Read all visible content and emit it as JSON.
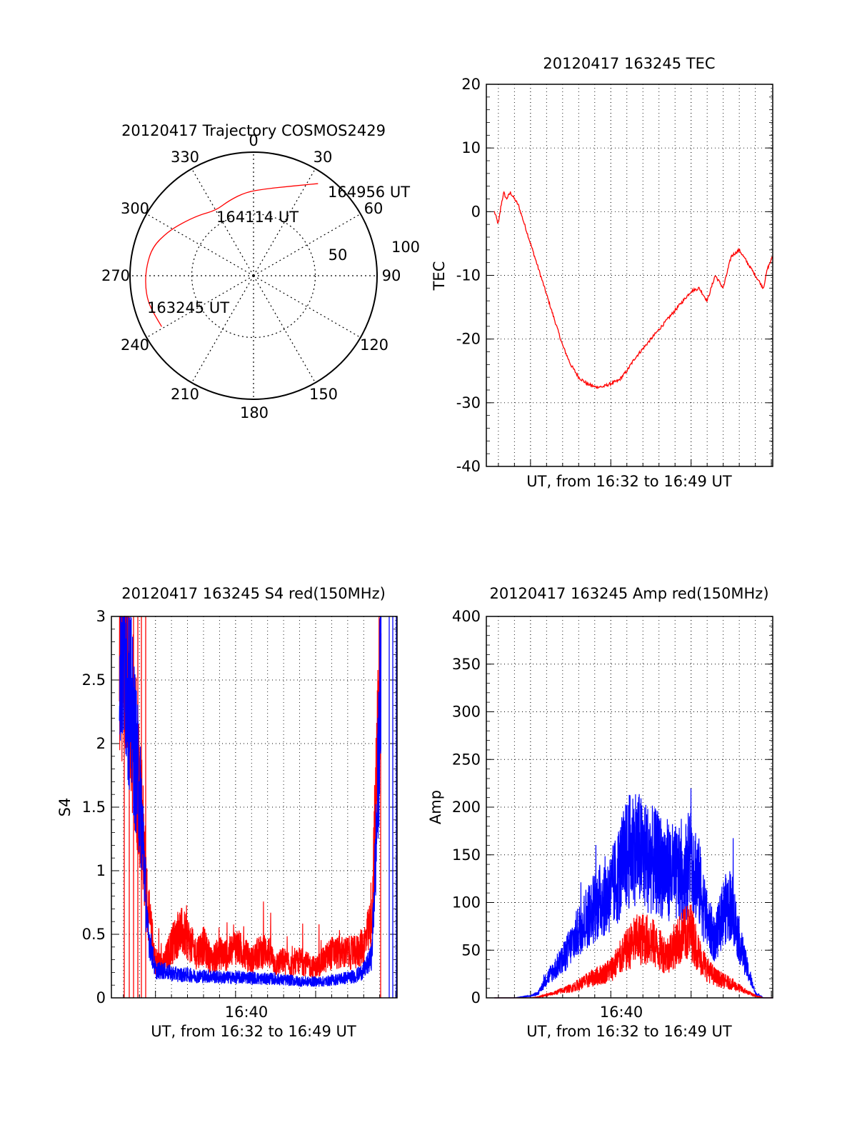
{
  "colors": {
    "red": "#ff0000",
    "blue": "#0000ff",
    "axis": "#000000",
    "grid": "#000000"
  },
  "chart_data": [
    {
      "id": "trajectory",
      "type": "polar",
      "title": "20120417 Trajectory COSMOS2429",
      "angle_labels": [
        "0",
        "30",
        "60",
        "90",
        "120",
        "150",
        "180",
        "210",
        "240",
        "270",
        "300",
        "330"
      ],
      "radial_labels": [
        "50",
        "100"
      ],
      "radial_range": [
        0,
        100
      ],
      "grid": true,
      "series": [
        {
          "color": "#ff0000",
          "points": [
            {
              "az": 241,
              "r": 85
            },
            {
              "az": 248,
              "r": 86
            },
            {
              "az": 256,
              "r": 88
            },
            {
              "az": 265,
              "r": 88
            },
            {
              "az": 275,
              "r": 87
            },
            {
              "az": 286,
              "r": 85
            },
            {
              "az": 297,
              "r": 78
            },
            {
              "az": 306,
              "r": 72
            },
            {
              "az": 318,
              "r": 66
            },
            {
              "az": 330,
              "r": 61
            },
            {
              "az": 342,
              "r": 64
            },
            {
              "az": 355,
              "r": 68
            },
            {
              "az": 8,
              "r": 71
            },
            {
              "az": 19,
              "r": 76
            },
            {
              "az": 28,
              "r": 83
            },
            {
              "az": 35,
              "r": 91
            }
          ]
        }
      ],
      "annotations": [
        {
          "text": "164956 UT"
        },
        {
          "text": "164114 UT"
        },
        {
          "text": "163245 UT"
        }
      ]
    },
    {
      "id": "tec",
      "type": "line",
      "title": "20120417 163245 TEC",
      "xlabel": "UT, from 16:32 to 16:49 UT",
      "ylabel": "TEC",
      "ylim": [
        -40,
        20
      ],
      "xlim": [
        "16:32:15",
        "16:50:05"
      ],
      "x_ticks": [],
      "y_ticks": [
        "-40",
        "-30",
        "-20",
        "-10",
        "0",
        "10",
        "20"
      ],
      "grid": true,
      "series": [
        {
          "color": "#ff0000",
          "x": [
            "16:32:45",
            "16:33:00",
            "16:33:10",
            "16:33:20",
            "16:33:30",
            "16:33:45",
            "16:34:00",
            "16:34:15",
            "16:34:30",
            "16:35:00",
            "16:35:30",
            "16:36:00",
            "16:36:30",
            "16:37:00",
            "16:37:30",
            "16:38:00",
            "16:38:30",
            "16:39:00",
            "16:39:30",
            "16:40:00",
            "16:40:30",
            "16:41:00",
            "16:41:30",
            "16:42:00",
            "16:42:30",
            "16:43:00",
            "16:43:30",
            "16:44:00",
            "16:44:30",
            "16:45:00",
            "16:45:30",
            "16:46:00",
            "16:46:30",
            "16:47:00",
            "16:47:30",
            "16:48:00",
            "16:48:30",
            "16:48:45",
            "16:49:00",
            "16:49:15",
            "16:49:30",
            "16:49:45",
            "16:50:05"
          ],
          "values": [
            0,
            -2,
            1,
            3,
            2,
            3,
            2,
            1,
            -1,
            -5,
            -9,
            -13,
            -17,
            -21,
            -24,
            -26,
            -27,
            -27.5,
            -27.5,
            -27,
            -26.5,
            -25,
            -23,
            -21.5,
            -20,
            -18.5,
            -17,
            -15.5,
            -14,
            -12.5,
            -12,
            -14,
            -10,
            -12,
            -7,
            -6,
            -8,
            -9,
            -10,
            -11,
            -12,
            -9,
            -7
          ]
        }
      ]
    },
    {
      "id": "s4",
      "type": "line",
      "title": "20120417 163245 S4 red(150MHz)",
      "xlabel": "UT, from 16:32 to 16:49 UT",
      "ylabel": "S4",
      "ylim": [
        0,
        3
      ],
      "xlim": [
        "16:32:15",
        "16:50:05"
      ],
      "x_ticks": [
        "16:40"
      ],
      "y_ticks": [
        "0",
        "0.5",
        "1",
        "1.5",
        "2",
        "2.5",
        "3"
      ],
      "grid": true,
      "series": [
        {
          "color": "#ff0000",
          "x": [
            "16:32:45",
            "16:33:10",
            "16:33:30",
            "16:33:50",
            "16:34:10",
            "16:34:30",
            "16:35:00",
            "16:35:30",
            "16:36:00",
            "16:36:30",
            "16:37:00",
            "16:37:30",
            "16:38:00",
            "16:38:30",
            "16:39:00",
            "16:39:30",
            "16:40:00",
            "16:40:30",
            "16:41:00",
            "16:41:30",
            "16:42:00",
            "16:42:30",
            "16:43:00",
            "16:43:30",
            "16:44:00",
            "16:44:30",
            "16:45:00",
            "16:45:30",
            "16:46:00",
            "16:46:30",
            "16:47:00",
            "16:47:30",
            "16:48:00",
            "16:48:30",
            "16:48:50",
            "16:49:05"
          ],
          "values": [
            2.6,
            2.3,
            2.0,
            1.6,
            1.2,
            0.6,
            0.25,
            0.22,
            0.35,
            0.45,
            0.4,
            0.3,
            0.35,
            0.25,
            0.3,
            0.28,
            0.35,
            0.3,
            0.25,
            0.3,
            0.32,
            0.22,
            0.25,
            0.2,
            0.25,
            0.22,
            0.2,
            0.25,
            0.3,
            0.3,
            0.3,
            0.3,
            0.35,
            0.5,
            1.5,
            2.7
          ]
        },
        {
          "color": "#0000ff",
          "x": [
            "16:32:45",
            "16:33:10",
            "16:33:30",
            "16:33:50",
            "16:34:10",
            "16:34:30",
            "16:35:00",
            "16:35:30",
            "16:36:00",
            "16:36:30",
            "16:37:00",
            "16:37:30",
            "16:38:00",
            "16:38:30",
            "16:39:00",
            "16:39:30",
            "16:40:00",
            "16:40:30",
            "16:41:00",
            "16:41:30",
            "16:42:00",
            "16:42:30",
            "16:43:00",
            "16:43:30",
            "16:44:00",
            "16:44:30",
            "16:45:00",
            "16:45:30",
            "16:46:00",
            "16:46:30",
            "16:47:00",
            "16:47:30",
            "16:48:00",
            "16:48:30",
            "16:48:50",
            "16:49:05"
          ],
          "values": [
            2.7,
            2.5,
            2.1,
            1.7,
            1.3,
            0.5,
            0.2,
            0.2,
            0.18,
            0.17,
            0.17,
            0.16,
            0.16,
            0.16,
            0.15,
            0.15,
            0.15,
            0.15,
            0.15,
            0.14,
            0.14,
            0.14,
            0.13,
            0.13,
            0.12,
            0.12,
            0.12,
            0.12,
            0.13,
            0.14,
            0.15,
            0.16,
            0.2,
            0.3,
            1.3,
            2.5
          ]
        }
      ]
    },
    {
      "id": "amp",
      "type": "line",
      "title": "20120417 163245 Amp red(150MHz)",
      "xlabel": "UT, from 16:32 to 16:49 UT",
      "ylabel": "Amp",
      "ylim": [
        0,
        400
      ],
      "xlim": [
        "16:32:15",
        "16:50:05"
      ],
      "x_ticks": [
        "16:40"
      ],
      "y_ticks": [
        "0",
        "50",
        "100",
        "150",
        "200",
        "250",
        "300",
        "350",
        "400"
      ],
      "grid": true,
      "series": [
        {
          "color": "#0000ff",
          "x": [
            "16:32:45",
            "16:34:00",
            "16:35:00",
            "16:35:30",
            "16:36:00",
            "16:36:30",
            "16:37:00",
            "16:37:30",
            "16:38:00",
            "16:38:30",
            "16:39:00",
            "16:39:30",
            "16:40:00",
            "16:40:30",
            "16:41:00",
            "16:41:30",
            "16:42:00",
            "16:42:30",
            "16:43:00",
            "16:43:30",
            "16:44:00",
            "16:44:30",
            "16:45:00",
            "16:45:30",
            "16:46:00",
            "16:46:30",
            "16:47:00",
            "16:47:30",
            "16:48:00",
            "16:48:30",
            "16:49:00",
            "16:49:30",
            "16:50:05"
          ],
          "values": [
            0,
            0,
            2,
            5,
            20,
            30,
            40,
            55,
            70,
            85,
            95,
            105,
            110,
            130,
            150,
            160,
            150,
            145,
            140,
            135,
            130,
            125,
            150,
            120,
            80,
            60,
            90,
            100,
            60,
            30,
            5,
            0,
            0
          ]
        },
        {
          "color": "#ff0000",
          "x": [
            "16:32:45",
            "16:34:00",
            "16:35:00",
            "16:35:30",
            "16:36:00",
            "16:36:30",
            "16:37:00",
            "16:37:30",
            "16:38:00",
            "16:38:30",
            "16:39:00",
            "16:39:30",
            "16:40:00",
            "16:40:30",
            "16:41:00",
            "16:41:30",
            "16:42:00",
            "16:42:30",
            "16:43:00",
            "16:43:30",
            "16:44:00",
            "16:44:30",
            "16:45:00",
            "16:45:30",
            "16:46:00",
            "16:46:30",
            "16:47:00",
            "16:47:30",
            "16:48:00",
            "16:48:30",
            "16:49:00",
            "16:49:30",
            "16:50:05"
          ],
          "values": [
            0,
            0,
            0,
            1,
            3,
            5,
            8,
            10,
            14,
            18,
            22,
            25,
            30,
            40,
            50,
            60,
            62,
            60,
            50,
            45,
            55,
            65,
            70,
            45,
            30,
            22,
            18,
            15,
            10,
            6,
            2,
            0,
            0
          ]
        }
      ]
    }
  ]
}
